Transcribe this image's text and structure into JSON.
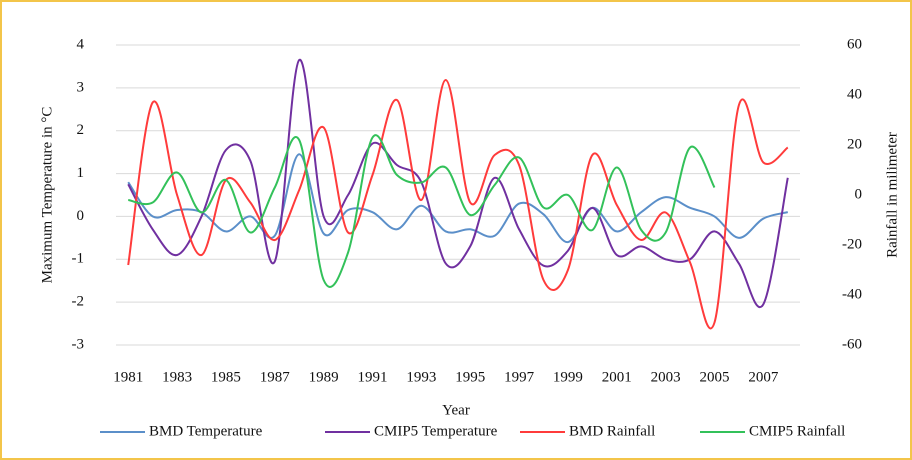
{
  "chart_data": {
    "type": "line",
    "x_label": "Year",
    "y_label": "Maximum Temperature in °C",
    "y2_label": "Rainfall in milimeter",
    "categories": [
      "1981",
      null,
      "1983",
      null,
      "1985",
      null,
      "1987",
      null,
      "1989",
      null,
      "1991",
      null,
      "1993",
      null,
      "1995",
      null,
      "1997",
      null,
      "1999",
      null,
      "2001",
      null,
      "2003",
      null,
      "2005",
      null,
      "2007",
      null
    ],
    "ylim": [
      -3,
      4
    ],
    "yticks": [
      -3,
      -2,
      -1,
      0,
      1,
      2,
      3,
      4
    ],
    "y2lim": [
      -60,
      60
    ],
    "y2ticks": [
      -60,
      -40,
      -20,
      0,
      20,
      40,
      60
    ],
    "grid": true,
    "legend": "bottom",
    "series": [
      {
        "name": "BMD Temperature",
        "color": "#5b8fc9",
        "values": [
          0.8,
          0.0,
          0.15,
          0.1,
          -0.35,
          0.0,
          -0.45,
          1.45,
          -0.4,
          0.15,
          0.1,
          -0.3,
          0.25,
          -0.35,
          -0.3,
          -0.45,
          0.3,
          0.05,
          -0.6,
          0.2,
          -0.35,
          0.1,
          0.45,
          0.2,
          0.0,
          -0.5,
          -0.05,
          0.1
        ]
      },
      {
        "name": "CMIP5 Temperature",
        "color": "#7030a0",
        "values": [
          0.75,
          -0.3,
          -0.9,
          0.0,
          1.55,
          1.3,
          -1.05,
          3.65,
          0.0,
          0.5,
          1.7,
          1.2,
          0.8,
          -1.1,
          -0.7,
          0.9,
          -0.3,
          -1.15,
          -0.8,
          0.2,
          -0.9,
          -0.7,
          -1.0,
          -1.0,
          -0.35,
          -1.1,
          -2.05,
          0.9
        ]
      },
      {
        "name": "BMD Rainfall",
        "color": "#ff3b3b",
        "axis": "y2",
        "values": [
          -28,
          37,
          0,
          -24,
          6,
          -3,
          -18,
          2,
          27,
          -15,
          8,
          38,
          -2,
          46,
          -3,
          16,
          12,
          -34,
          -30,
          16,
          -4,
          -18,
          -7,
          -27,
          -51,
          36,
          13,
          19
        ]
      },
      {
        "name": "CMIP5 Rainfall",
        "color": "#33c15a",
        "axis": "y2",
        "values": [
          -2,
          -3,
          9,
          -7,
          6,
          -15,
          3,
          22,
          -34,
          -23,
          23,
          8,
          5,
          11,
          -8,
          4,
          15,
          -5,
          0,
          -14,
          11,
          -14,
          -15,
          19,
          3,
          null,
          null,
          null
        ]
      }
    ]
  }
}
